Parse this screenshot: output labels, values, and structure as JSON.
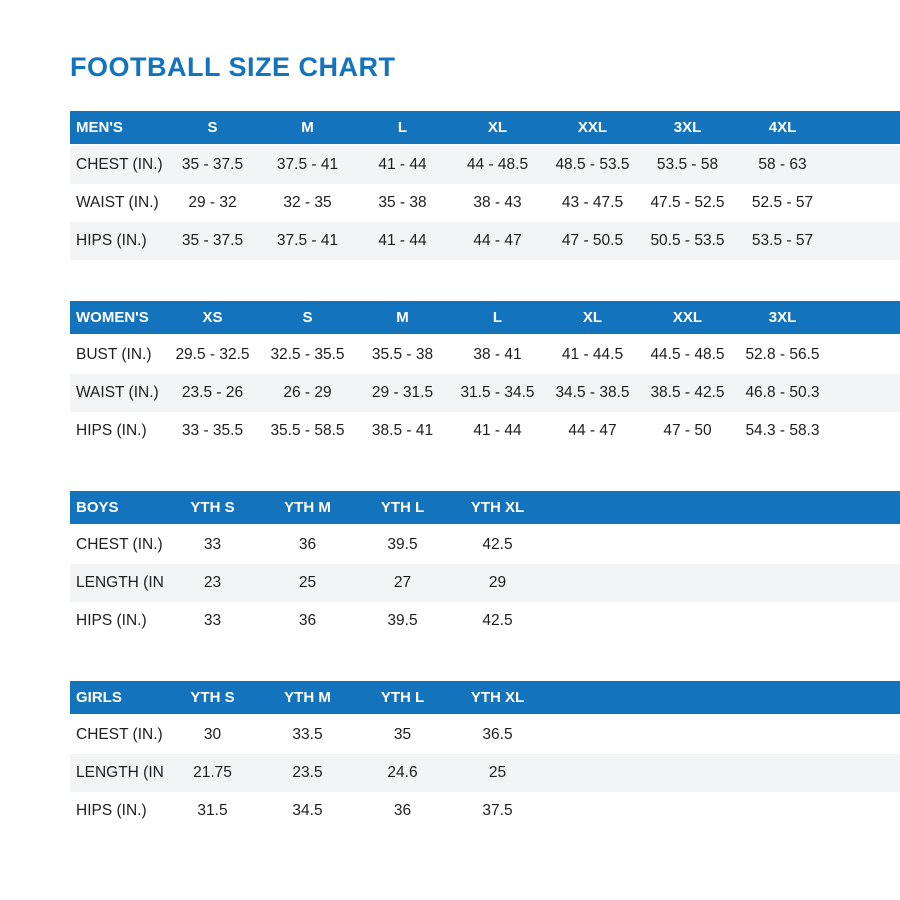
{
  "page": {
    "title": "FOOTBALL SIZE CHART"
  },
  "colors": {
    "accent": "#1374bd",
    "stripe": "#f3f4f5",
    "header_text": "#ffffff",
    "body_text": "#1e1e1e"
  },
  "tables": [
    {
      "name": "mens",
      "header": [
        "MEN'S",
        "S",
        "M",
        "L",
        "XL",
        "XXL",
        "3XL",
        "4XL"
      ],
      "rows": [
        {
          "label": "CHEST (IN.)",
          "values": [
            "35 - 37.5",
            "37.5 - 41",
            "41 - 44",
            "44 - 48.5",
            "48.5 - 53.5",
            "53.5 - 58",
            "58 - 63"
          ]
        },
        {
          "label": "WAIST (IN.)",
          "values": [
            "29 - 32",
            "32 - 35",
            "35 - 38",
            "38 - 43",
            "43 - 47.5",
            "47.5 - 52.5",
            "52.5 - 57"
          ]
        },
        {
          "label": "HIPS (IN.)",
          "values": [
            "35 - 37.5",
            "37.5 - 41",
            "41 - 44",
            "44 - 47",
            "47 - 50.5",
            "50.5 - 53.5",
            "53.5 - 57"
          ]
        }
      ]
    },
    {
      "name": "womens",
      "header": [
        "WOMEN'S",
        "XS",
        "S",
        "M",
        "L",
        "XL",
        "XXL",
        "3XL"
      ],
      "rows": [
        {
          "label": "BUST (IN.)",
          "values": [
            "29.5 - 32.5",
            "32.5 - 35.5",
            "35.5 - 38",
            "38 - 41",
            "41 - 44.5",
            "44.5 - 48.5",
            "52.8 - 56.5"
          ]
        },
        {
          "label": "WAIST (IN.)",
          "values": [
            "23.5 - 26",
            "26 - 29",
            "29 - 31.5",
            "31.5 - 34.5",
            "34.5 - 38.5",
            "38.5 - 42.5",
            "46.8 - 50.3"
          ]
        },
        {
          "label": "HIPS (IN.)",
          "values": [
            "33 - 35.5",
            "35.5 - 58.5",
            "38.5 - 41",
            "41 - 44",
            "44 - 47",
            "47 - 50",
            "54.3 - 58.3"
          ]
        }
      ]
    },
    {
      "name": "boys",
      "header": [
        "BOYS",
        "YTH S",
        "YTH M",
        "YTH L",
        "YTH XL"
      ],
      "rows": [
        {
          "label": "CHEST (IN.)",
          "values": [
            "33",
            "36",
            "39.5",
            "42.5"
          ]
        },
        {
          "label": "LENGTH (IN.)",
          "values": [
            "23",
            "25",
            "27",
            "29"
          ]
        },
        {
          "label": "HIPS (IN.)",
          "values": [
            "33",
            "36",
            "39.5",
            "42.5"
          ]
        }
      ]
    },
    {
      "name": "girls",
      "header": [
        "GIRLS",
        "YTH S",
        "YTH M",
        "YTH L",
        "YTH XL"
      ],
      "rows": [
        {
          "label": "CHEST (IN.)",
          "values": [
            "30",
            "33.5",
            "35",
            "36.5"
          ]
        },
        {
          "label": "LENGTH (IN.)",
          "values": [
            "21.75",
            "23.5",
            "24.6",
            "25"
          ]
        },
        {
          "label": "HIPS (IN.)",
          "values": [
            "31.5",
            "34.5",
            "36",
            "37.5"
          ]
        }
      ]
    }
  ]
}
